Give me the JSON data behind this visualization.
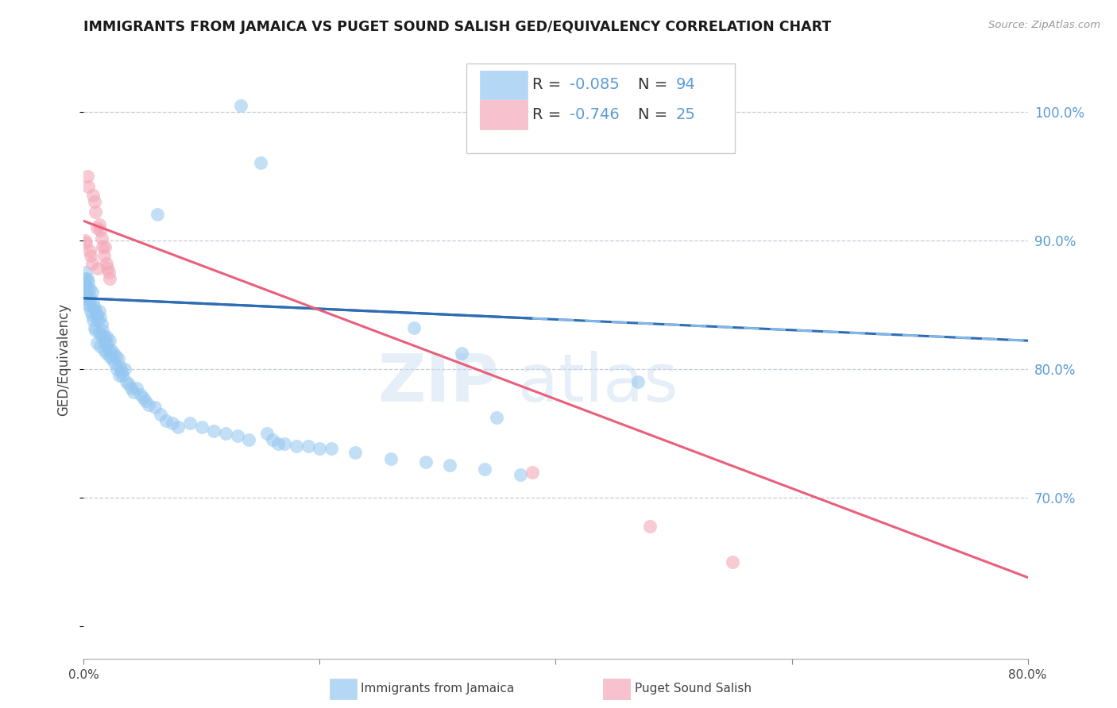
{
  "title": "IMMIGRANTS FROM JAMAICA VS PUGET SOUND SALISH GED/EQUIVALENCY CORRELATION CHART",
  "source": "Source: ZipAtlas.com",
  "ylabel": "GED/Equivalency",
  "xlim": [
    0.0,
    0.8
  ],
  "ylim": [
    0.575,
    1.04
  ],
  "legend_r1": "R = ",
  "legend_v1": "-0.085",
  "legend_n1": "N = ",
  "legend_nv1": "94",
  "legend_r2": "R = ",
  "legend_v2": "-0.746",
  "legend_n2": "N = ",
  "legend_nv2": "25",
  "blue_color": "#93C6F0",
  "pink_color": "#F4A8B8",
  "trend_blue_color": "#2E6DB4",
  "trend_pink_color": "#E8607A",
  "yticks": [
    0.7,
    0.8,
    0.9,
    1.0
  ],
  "ytick_labels": [
    "70.0%",
    "80.0%",
    "90.0%",
    "100.0%"
  ],
  "blue_line_x0": 0.0,
  "blue_line_x1": 0.8,
  "blue_line_y0": 0.855,
  "blue_line_y1": 0.822,
  "pink_line_x0": 0.0,
  "pink_line_x1": 0.8,
  "pink_line_y0": 0.915,
  "pink_line_y1": 0.638,
  "blue_x": [
    0.001,
    0.001,
    0.002,
    0.002,
    0.002,
    0.003,
    0.003,
    0.003,
    0.004,
    0.004,
    0.005,
    0.005,
    0.006,
    0.006,
    0.007,
    0.007,
    0.008,
    0.008,
    0.009,
    0.009,
    0.01,
    0.01,
    0.011,
    0.011,
    0.012,
    0.013,
    0.013,
    0.014,
    0.014,
    0.015,
    0.015,
    0.016,
    0.017,
    0.017,
    0.018,
    0.019,
    0.019,
    0.02,
    0.021,
    0.022,
    0.022,
    0.023,
    0.024,
    0.025,
    0.026,
    0.027,
    0.028,
    0.029,
    0.03,
    0.031,
    0.032,
    0.033,
    0.035,
    0.036,
    0.038,
    0.04,
    0.042,
    0.045,
    0.048,
    0.05,
    0.052,
    0.055,
    0.06,
    0.065,
    0.07,
    0.075,
    0.08,
    0.09,
    0.1,
    0.11,
    0.12,
    0.13,
    0.14,
    0.155,
    0.17,
    0.19,
    0.21,
    0.23,
    0.26,
    0.29,
    0.31,
    0.34,
    0.37,
    0.16,
    0.18,
    0.2,
    0.47,
    0.15,
    0.28,
    0.32,
    0.35,
    0.165,
    0.062,
    0.133
  ],
  "blue_y": [
    0.87,
    0.86,
    0.875,
    0.865,
    0.855,
    0.87,
    0.862,
    0.85,
    0.868,
    0.856,
    0.862,
    0.85,
    0.855,
    0.845,
    0.86,
    0.842,
    0.852,
    0.838,
    0.848,
    0.832,
    0.845,
    0.83,
    0.842,
    0.82,
    0.838,
    0.845,
    0.828,
    0.84,
    0.818,
    0.835,
    0.825,
    0.83,
    0.825,
    0.815,
    0.82,
    0.825,
    0.812,
    0.82,
    0.815,
    0.822,
    0.81,
    0.815,
    0.808,
    0.812,
    0.805,
    0.81,
    0.8,
    0.808,
    0.795,
    0.802,
    0.798,
    0.795,
    0.8,
    0.79,
    0.788,
    0.785,
    0.782,
    0.785,
    0.78,
    0.778,
    0.775,
    0.772,
    0.77,
    0.765,
    0.76,
    0.758,
    0.755,
    0.758,
    0.755,
    0.752,
    0.75,
    0.748,
    0.745,
    0.75,
    0.742,
    0.74,
    0.738,
    0.735,
    0.73,
    0.728,
    0.725,
    0.722,
    0.718,
    0.745,
    0.74,
    0.738,
    0.79,
    0.96,
    0.832,
    0.812,
    0.762,
    0.742,
    0.92,
    1.005
  ],
  "pink_x": [
    0.001,
    0.002,
    0.003,
    0.004,
    0.005,
    0.006,
    0.007,
    0.008,
    0.009,
    0.01,
    0.011,
    0.012,
    0.013,
    0.014,
    0.015,
    0.016,
    0.017,
    0.018,
    0.019,
    0.02,
    0.021,
    0.022,
    0.38,
    0.48,
    0.55
  ],
  "pink_y": [
    0.9,
    0.898,
    0.95,
    0.942,
    0.892,
    0.888,
    0.882,
    0.935,
    0.93,
    0.922,
    0.91,
    0.878,
    0.912,
    0.908,
    0.902,
    0.895,
    0.888,
    0.895,
    0.882,
    0.878,
    0.875,
    0.87,
    0.72,
    0.678,
    0.65
  ]
}
